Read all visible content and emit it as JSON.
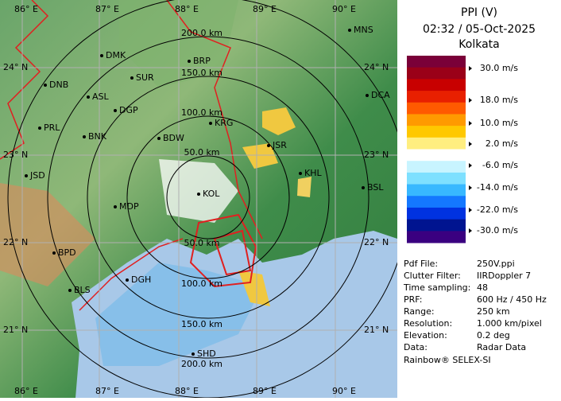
{
  "header": {
    "title": "PPI (V)",
    "time": "02:32 / 05-Oct-2025",
    "site": "Kolkata"
  },
  "legend": {
    "colors": [
      "#7a0038",
      "#9a0018",
      "#c80000",
      "#e82000",
      "#ff5a00",
      "#ff9a00",
      "#ffc800",
      "#ffee80",
      "#ffffff",
      "#c8f4ff",
      "#7ee0ff",
      "#38b8ff",
      "#1478ff",
      "#0032e0",
      "#001490",
      "#3a0080"
    ],
    "labels": [
      "30.0 m/s",
      "18.0 m/s",
      "10.0 m/s",
      "2.0 m/s",
      "-6.0 m/s",
      "-14.0 m/s",
      "-22.0 m/s",
      "-30.0 m/s"
    ]
  },
  "info": {
    "rows": [
      [
        "Pdf File:",
        "250V.ppi"
      ],
      [
        "Clutter Filter:",
        "IIRDoppler 7"
      ],
      [
        "Time sampling:",
        "48"
      ],
      [
        "PRF:",
        "600 Hz / 450 Hz"
      ],
      [
        "Range:",
        "250 km"
      ],
      [
        "Resolution:",
        "1.000 km/pixel"
      ],
      [
        "Elevation:",
        "0.2 deg"
      ],
      [
        "Data:",
        "Radar Data"
      ]
    ]
  },
  "footer": "Rainbow® SELEX-SI",
  "map": {
    "lon_top": [
      "86° E",
      "87° E",
      "88° E",
      "89° E",
      "90° E"
    ],
    "lon_bottom": [
      "86° E",
      "87° E",
      "88° E",
      "89° E",
      "90° E"
    ],
    "lat_left": [
      "24° N",
      "23° N",
      "22° N",
      "21° N"
    ],
    "lat_right": [
      "24° N",
      "23° N",
      "22° N",
      "21° N"
    ],
    "rings_north": [
      "50.0 km",
      "100.0 km",
      "150.0 km",
      "200.0 km"
    ],
    "rings_south": [
      "50.0 km",
      "100.0 km",
      "150.0 km",
      "200.0 km"
    ],
    "stations": [
      "MNS",
      "DMK",
      "BRP",
      "DNB",
      "SUR",
      "ASL",
      "DGP",
      "DCA",
      "PRL",
      "BNK",
      "KRG",
      "BDW",
      "JSR",
      "KHL",
      "JSD",
      "BSL",
      "MDP",
      "KOL",
      "BPD",
      "DGH",
      "BLS",
      "SHD"
    ]
  }
}
